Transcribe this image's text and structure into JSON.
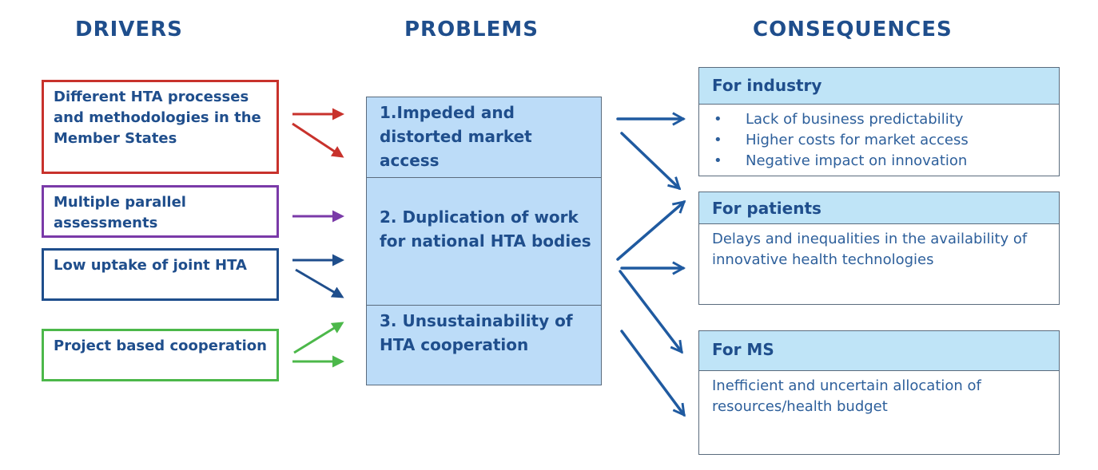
{
  "headings": {
    "drivers": "DRIVERS",
    "problems": "PROBLEMS",
    "consequences": "CONSEQUENCES"
  },
  "drivers": [
    {
      "text": "Different HTA processes and methodologies in the Member States",
      "color": "#c8322c"
    },
    {
      "text": "Multiple parallel assessments",
      "color": "#7a3aa8"
    },
    {
      "text": "Low uptake of joint HTA",
      "color": "#1f4e8c"
    },
    {
      "text": "Project based cooperation",
      "color": "#4cb84a"
    }
  ],
  "problems": [
    {
      "text": "1.Impeded and distorted market access"
    },
    {
      "text": "2. Duplication of work for national HTA bodies"
    },
    {
      "text": "3. Unsustainability of HTA cooperation"
    }
  ],
  "consequences": {
    "industry": {
      "title": "For industry",
      "items": [
        "Lack of business predictability",
        "Higher costs for market  access",
        "Negative impact on innovation"
      ]
    },
    "patients": {
      "title": "For patients",
      "text": "Delays and inequalities in the availability of innovative health technologies"
    },
    "ms": {
      "title": "For MS",
      "text": "Inefficient and uncertain allocation of resources/health budget"
    }
  },
  "colors": {
    "heading": "#1f4e8c",
    "problem_fill": "#bcdcf8",
    "consequence_header_fill": "#bfe4f7",
    "arrow_blue": "#1f5aa0"
  }
}
